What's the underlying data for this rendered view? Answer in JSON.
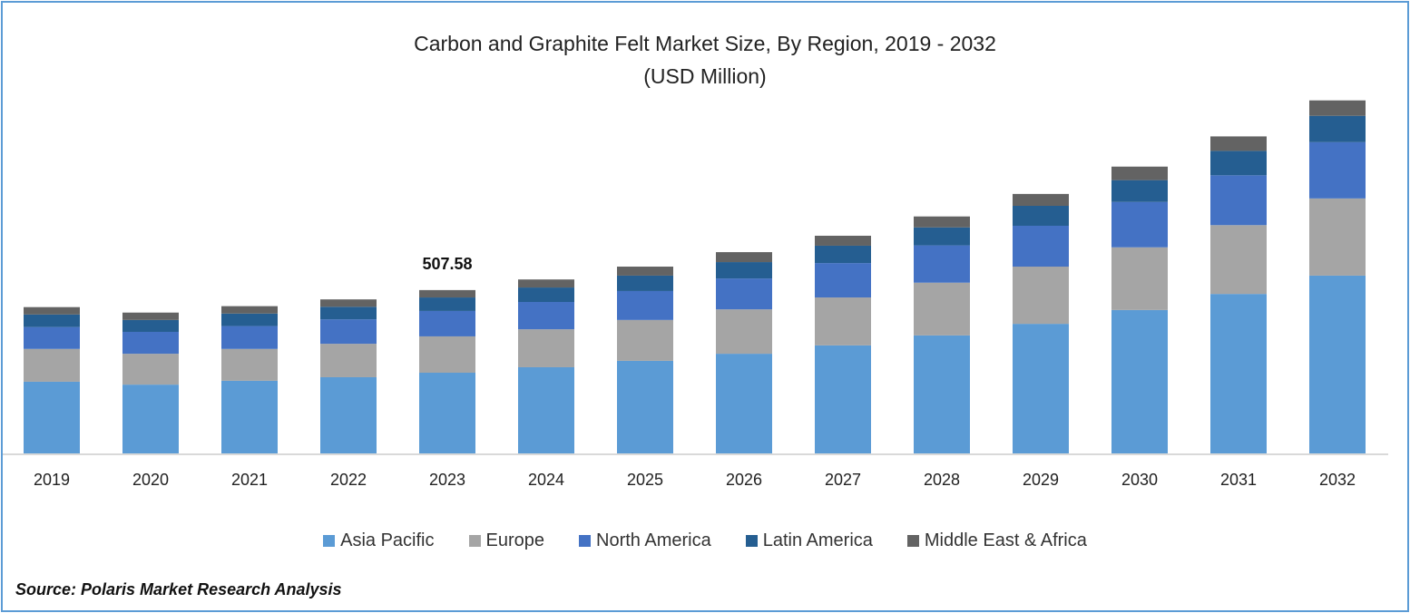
{
  "chart_data": {
    "type": "bar",
    "stacked": true,
    "title": "Carbon and Graphite Felt Market Size, By Region, 2019 - 2032",
    "subtitle": "(USD Million)",
    "xlabel": "",
    "ylabel": "",
    "ylim": [
      0,
      1100
    ],
    "grid": false,
    "legend_position": "bottom",
    "categories": [
      "2019",
      "2020",
      "2021",
      "2022",
      "2023",
      "2024",
      "2025",
      "2026",
      "2027",
      "2028",
      "2029",
      "2030",
      "2031",
      "2032"
    ],
    "series": [
      {
        "name": "Asia Pacific",
        "color": "#5B9BD5",
        "values": [
          223,
          214,
          226,
          237,
          251,
          268,
          288,
          310,
          336,
          367,
          403,
          446,
          496,
          553
        ]
      },
      {
        "name": "Europe",
        "color": "#A5A5A5",
        "values": [
          102,
          96,
          99,
          104,
          113,
          118,
          127,
          138,
          149,
          164,
          178,
          195,
          214,
          240
        ]
      },
      {
        "name": "North America",
        "color": "#4472C4",
        "values": [
          68,
          68,
          71,
          76,
          79,
          85,
          90,
          96,
          107,
          116,
          127,
          141,
          155,
          175
        ]
      },
      {
        "name": "Latin America",
        "color": "#255E91",
        "values": [
          39,
          37,
          39,
          39,
          42,
          45,
          48,
          51,
          54,
          56,
          62,
          68,
          76,
          82
        ]
      },
      {
        "name": "Middle East & Africa",
        "color": "#636363",
        "values": [
          23,
          23,
          23,
          23,
          23,
          25,
          28,
          31,
          31,
          34,
          37,
          42,
          45,
          48
        ]
      }
    ],
    "annotations": [
      {
        "category": "2023",
        "text": "507.58"
      }
    ]
  },
  "source": "Source: Polaris Market Research Analysis"
}
